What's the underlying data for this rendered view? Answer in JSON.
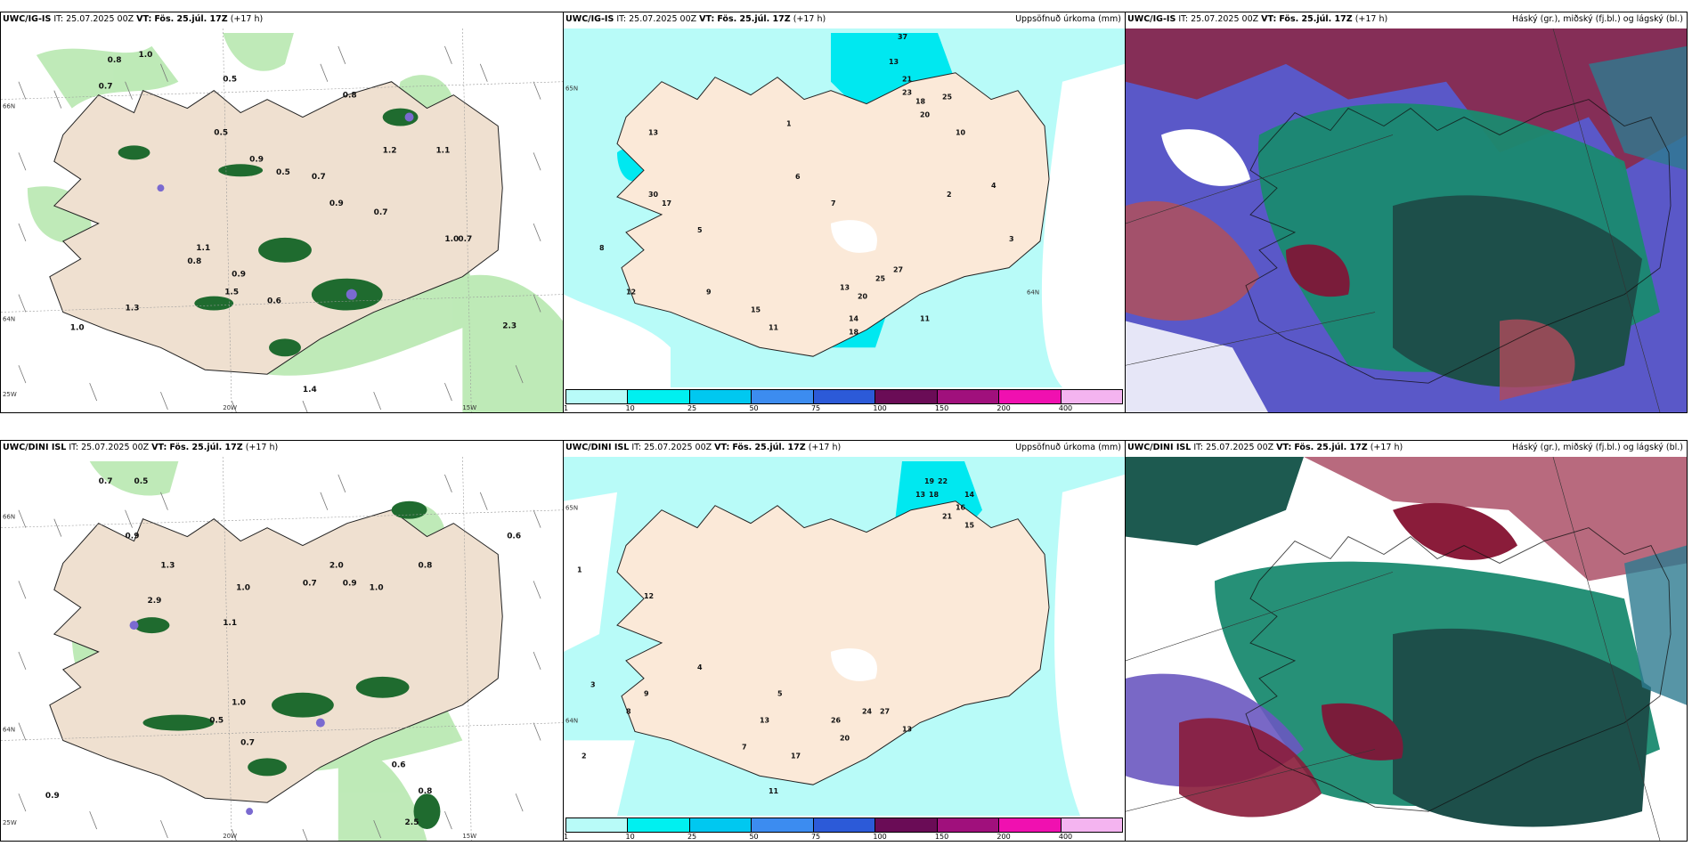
{
  "panels": [
    {
      "model": "UWC/IG-IS",
      "it_label": "IT:",
      "it": "25.07.2025 00Z",
      "vt_label": "VT:",
      "vt": "Fös. 25.júl. 17Z",
      "lead": "(+17 h)",
      "product": "",
      "lat_labels": [
        "66N",
        "64N",
        "25W"
      ],
      "lon_labels": [
        "20W",
        "15W"
      ]
    },
    {
      "model": "UWC/IG-IS",
      "it_label": "IT:",
      "it": "25.07.2025 00Z",
      "vt_label": "VT:",
      "vt": "Fös. 25.júl. 17Z",
      "lead": "(+17 h)",
      "product": "Uppsöfnuð úrkoma (mm)",
      "lat_labels": [
        "65N",
        "64N"
      ]
    },
    {
      "model": "UWC/IG-IS",
      "it_label": "IT:",
      "it": "25.07.2025 00Z",
      "vt_label": "VT:",
      "vt": "Fös. 25.júl. 17Z",
      "lead": "(+17 h)",
      "product": "Háský (gr.), miðský (fj.bl.) og lágský (bl.)"
    },
    {
      "model": "UWC/DINI ISL",
      "it_label": "IT:",
      "it": "25.07.2025 00Z",
      "vt_label": "VT:",
      "vt": "Fös. 25.júl. 17Z",
      "lead": "(+17 h)",
      "product": "",
      "lat_labels": [
        "66N",
        "64N",
        "25W"
      ],
      "lon_labels": [
        "20W",
        "15W"
      ]
    },
    {
      "model": "UWC/DINI ISL",
      "it_label": "IT:",
      "it": "25.07.2025 00Z",
      "vt_label": "VT:",
      "vt": "Fös. 25.júl. 17Z",
      "lead": "(+17 h)",
      "product": "Uppsöfnuð úrkoma (mm)",
      "lat_labels": [
        "65N",
        "64N"
      ]
    },
    {
      "model": "UWC/DINI ISL",
      "it_label": "IT:",
      "it": "25.07.2025 00Z",
      "vt_label": "VT:",
      "vt": "Fös. 25.júl. 17Z",
      "lead": "(+17 h)",
      "product": "Háský (gr.), miðský (fj.bl.) og lágský (bl.)"
    }
  ],
  "colorbar": {
    "labels": [
      "1",
      "10",
      "25",
      "50",
      "75",
      "100",
      "150",
      "200",
      "400"
    ],
    "colors": [
      "#b8fbf8",
      "#00f0f0",
      "#00c8f0",
      "#3c8cf0",
      "#2c5ad8",
      "#6a0c56",
      "#a0107c",
      "#f010b0",
      "#f4b4f0"
    ]
  },
  "wind_values_top": [
    "0.8",
    "0.5",
    "1.0",
    "0.7",
    "0.8",
    "0.5",
    "1.2",
    "0.9",
    "0.7",
    "1.3",
    "1.1",
    "0.5",
    "1.5",
    "0.9",
    "0.8",
    "0.7",
    "1.1",
    "1.0",
    "0.9",
    "0.6",
    "1.4",
    "2.3",
    "1.0",
    "0.7"
  ],
  "wind_values_bottom": [
    "0.7",
    "0.5",
    "0.9",
    "1.0",
    "2.0",
    "1.3",
    "1.0",
    "1.1",
    "0.5",
    "0.8",
    "0.9",
    "0.6",
    "0.7",
    "0.8",
    "2.9",
    "1.0",
    "0.9",
    "2.5",
    "0.6",
    "0.7"
  ],
  "precip_values_top": [
    "37",
    "13",
    "21",
    "23",
    "18",
    "20",
    "25",
    "13",
    "10",
    "12",
    "15",
    "11",
    "9",
    "8",
    "7",
    "6",
    "5",
    "4",
    "3",
    "2",
    "1",
    "14",
    "17",
    "30",
    "13",
    "20",
    "25",
    "27",
    "18",
    "11"
  ],
  "precip_values_bottom": [
    "19",
    "22",
    "18",
    "13",
    "21",
    "16",
    "15",
    "14",
    "12",
    "9",
    "8",
    "7",
    "5",
    "4",
    "3",
    "2",
    "1",
    "13",
    "26",
    "20",
    "24",
    "27",
    "17",
    "13",
    "11"
  ]
}
